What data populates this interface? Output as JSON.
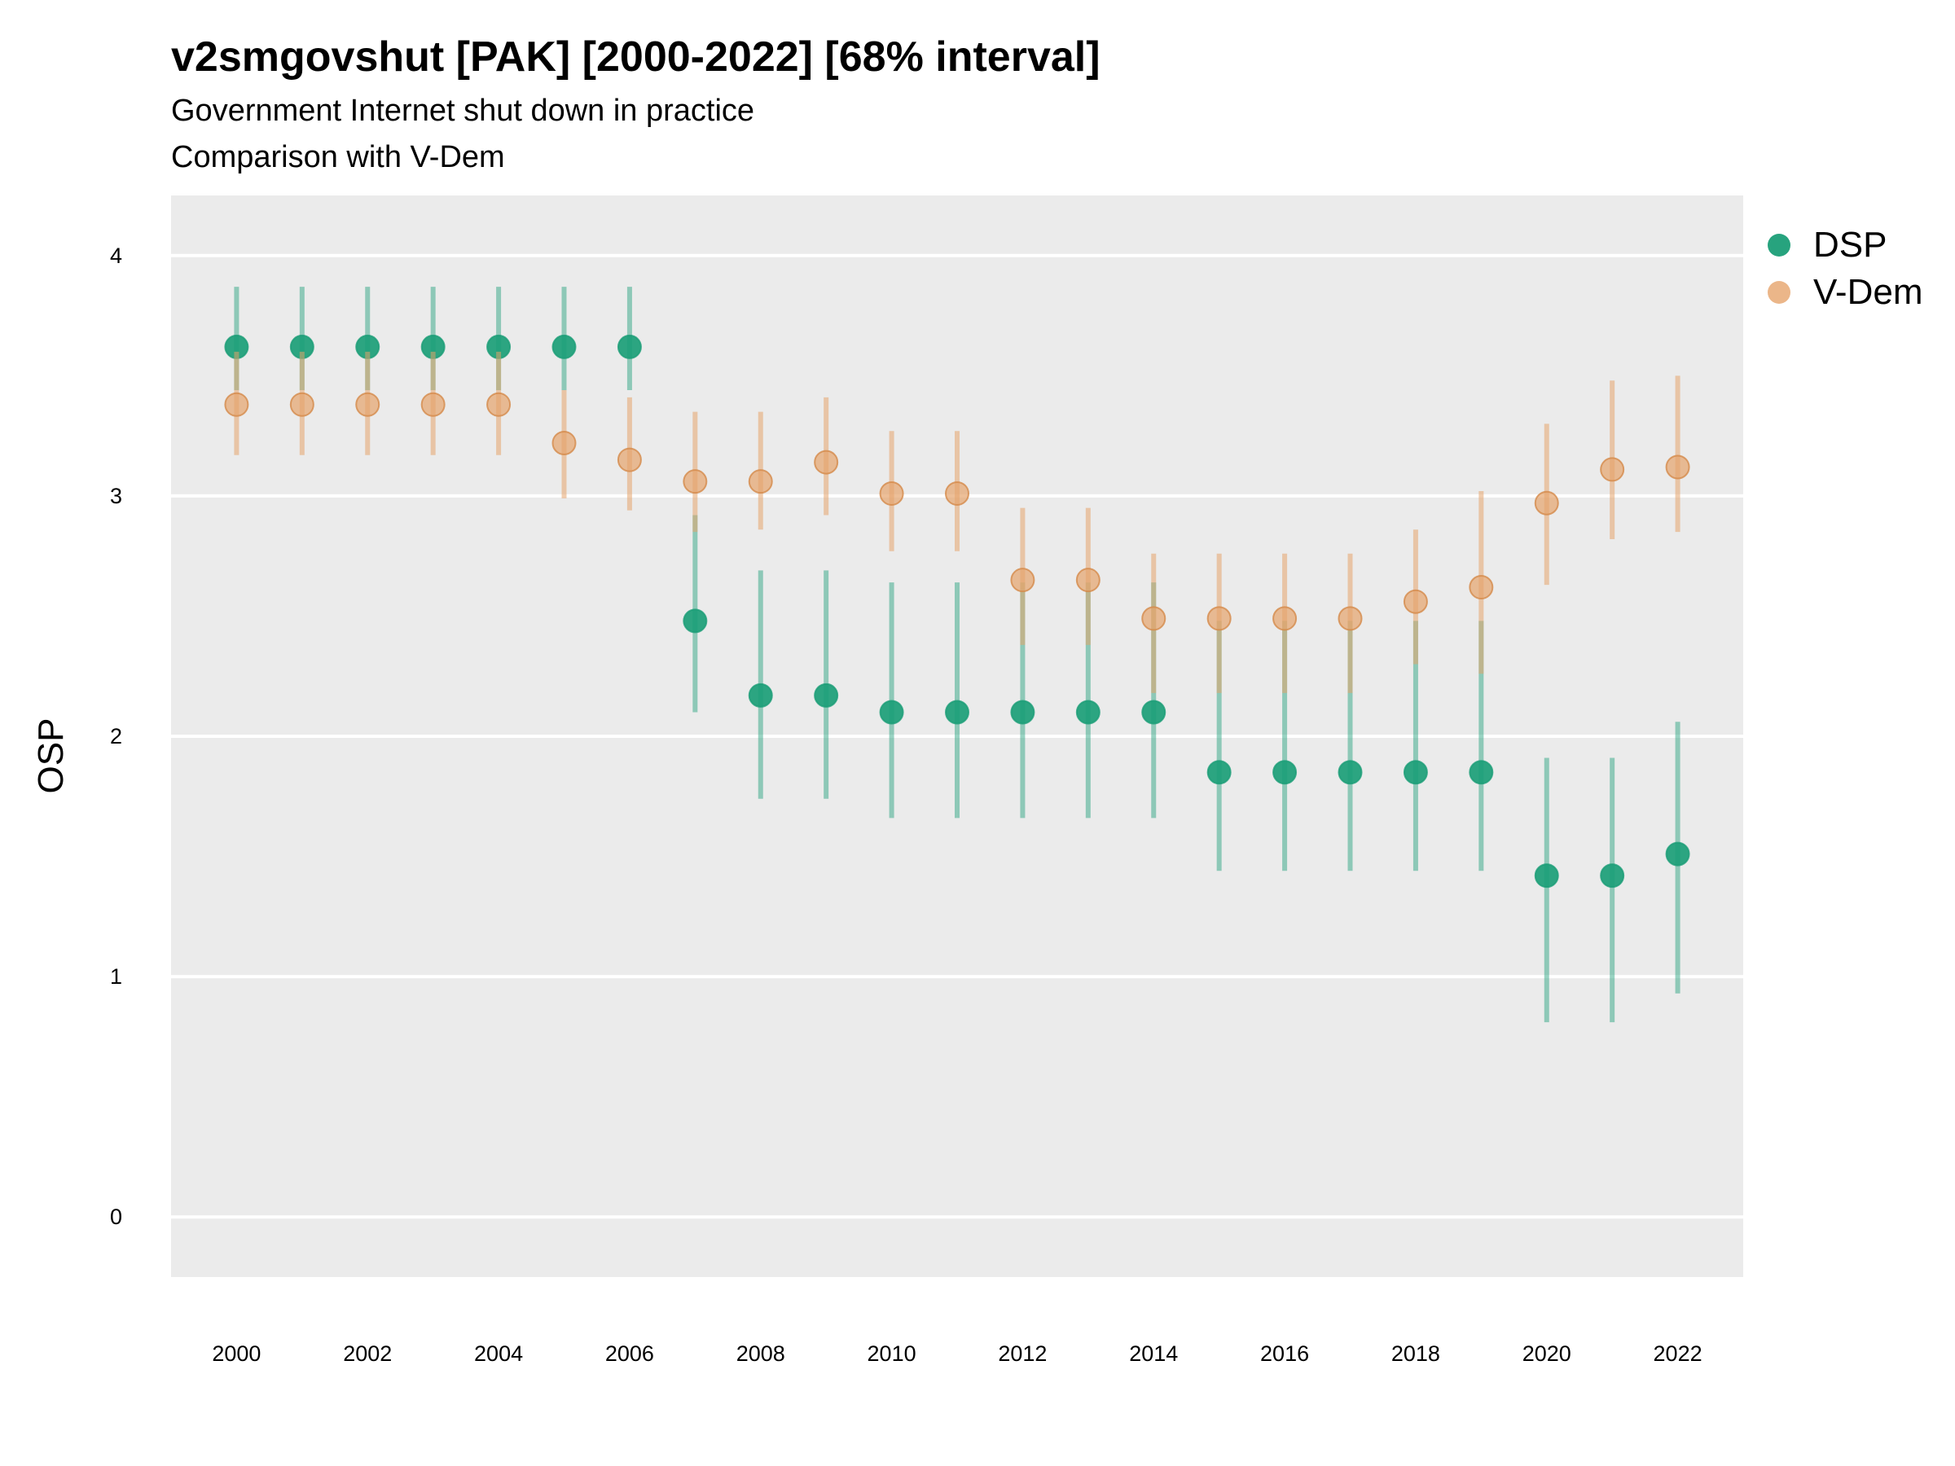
{
  "chart_data": {
    "type": "scatter",
    "title": "v2smgovshut [PAK] [2000-2022] [68% interval]",
    "subtitle": [
      "Government Internet shut down in practice",
      "Comparison with V-Dem"
    ],
    "xlabel": "",
    "ylabel": "OSP",
    "xlim": [
      1999.0,
      2023.0
    ],
    "ylim": [
      -0.25,
      4.25
    ],
    "x_ticks": [
      "2000",
      "2002",
      "2004",
      "2006",
      "2008",
      "2010",
      "2012",
      "2014",
      "2016",
      "2018",
      "2020",
      "2022"
    ],
    "y_ticks": [
      "0",
      "1",
      "2",
      "3",
      "4"
    ],
    "legend_position": "right",
    "series": [
      {
        "name": "DSP",
        "color": "#1b9e77",
        "x": [
          2000,
          2001,
          2002,
          2003,
          2004,
          2005,
          2006,
          2007,
          2008,
          2009,
          2010,
          2011,
          2012,
          2013,
          2014,
          2015,
          2016,
          2017,
          2018,
          2019,
          2020,
          2021,
          2022
        ],
        "y": [
          3.62,
          3.62,
          3.62,
          3.62,
          3.62,
          3.62,
          3.62,
          2.48,
          2.17,
          2.17,
          2.1,
          2.1,
          2.1,
          2.1,
          2.1,
          1.85,
          1.85,
          1.85,
          1.85,
          1.85,
          1.42,
          1.42,
          1.51
        ],
        "lower": [
          3.44,
          3.44,
          3.44,
          3.44,
          3.44,
          3.44,
          3.44,
          2.1,
          1.74,
          1.74,
          1.66,
          1.66,
          1.66,
          1.66,
          1.66,
          1.44,
          1.44,
          1.44,
          1.44,
          1.44,
          0.81,
          0.81,
          0.93
        ],
        "upper": [
          3.87,
          3.87,
          3.87,
          3.87,
          3.87,
          3.87,
          3.87,
          2.92,
          2.69,
          2.69,
          2.64,
          2.64,
          2.64,
          2.64,
          2.64,
          2.48,
          2.48,
          2.48,
          2.48,
          2.48,
          1.91,
          1.91,
          2.06
        ]
      },
      {
        "name": "V-Dem",
        "color": "#e6a46c",
        "x": [
          2000,
          2001,
          2002,
          2003,
          2004,
          2005,
          2006,
          2007,
          2008,
          2009,
          2010,
          2011,
          2012,
          2013,
          2014,
          2015,
          2016,
          2017,
          2018,
          2019,
          2020,
          2021,
          2022
        ],
        "y": [
          3.38,
          3.38,
          3.38,
          3.38,
          3.38,
          3.22,
          3.15,
          3.06,
          3.06,
          3.14,
          3.01,
          3.01,
          2.65,
          2.65,
          2.49,
          2.49,
          2.49,
          2.49,
          2.56,
          2.62,
          2.97,
          3.11,
          3.12
        ],
        "lower": [
          3.17,
          3.17,
          3.17,
          3.17,
          3.17,
          2.99,
          2.94,
          2.85,
          2.86,
          2.92,
          2.77,
          2.77,
          2.38,
          2.38,
          2.18,
          2.18,
          2.18,
          2.18,
          2.3,
          2.26,
          2.63,
          2.82,
          2.85
        ],
        "upper": [
          3.6,
          3.6,
          3.6,
          3.6,
          3.6,
          3.44,
          3.41,
          3.35,
          3.35,
          3.41,
          3.27,
          3.27,
          2.95,
          2.95,
          2.76,
          2.76,
          2.76,
          2.76,
          2.86,
          3.02,
          3.3,
          3.48,
          3.5
        ]
      }
    ]
  }
}
